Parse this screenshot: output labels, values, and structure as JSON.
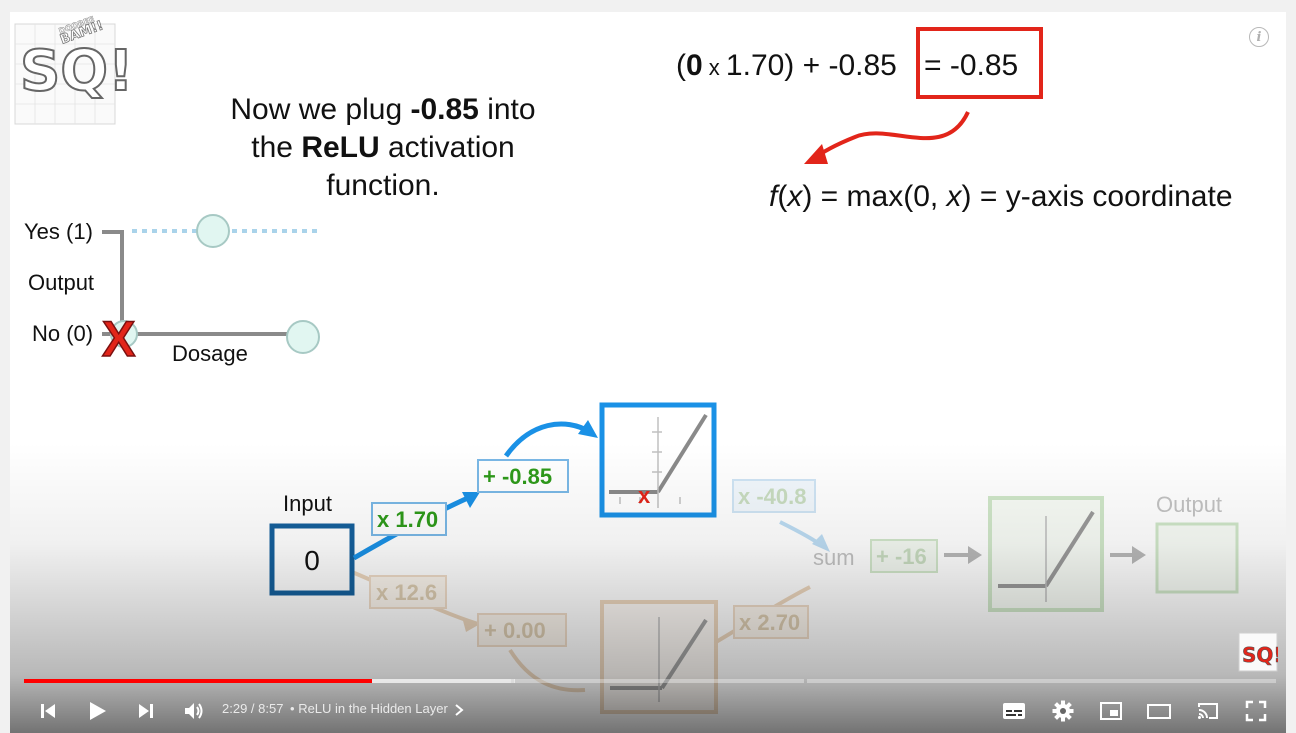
{
  "slide": {
    "headline": {
      "line1_pre": "Now we plug ",
      "line1_bold": "-0.85",
      "line1_post": " into",
      "line2_pre": "the ",
      "line2_bold": "ReLU",
      "line2_post": " activation",
      "line3": "function."
    },
    "equation": {
      "open": "(",
      "zero": "0",
      "times": " x ",
      "weight": "1.70) + -0.85",
      "result": "= -0.85"
    },
    "relu_formula": {
      "f": "f",
      "open1": "(",
      "x1": "x",
      "mid": ") = max(0, ",
      "x2": "x",
      "end": ") = y-axis coordinate"
    },
    "graph": {
      "yes_label": "Yes (1)",
      "output_label": "Output",
      "no_label": "No (0)",
      "dosage_label": "Dosage",
      "x_mark": "X"
    },
    "network": {
      "input_label": "Input",
      "input_value": "0",
      "w1_top": "x 1.70",
      "b1_top": "+ -0.85",
      "w2_top": "x -40.8",
      "w1_bottom": "x 12.6",
      "b1_bottom": "+ 0.00",
      "w2_bottom": "x 2.70",
      "sum_label": "sum",
      "final_bias": "+ -16",
      "output_label": "Output",
      "relu_x_mark": "x"
    },
    "logo_text": "SQ!",
    "logo_small": "BAM!!",
    "logo_tiny": "DOOBEE"
  },
  "player": {
    "time_current": "2:29",
    "time_separator": " / ",
    "time_total": "8:57",
    "chapter_bullet": "•",
    "chapter_title": "ReLU in the Hidden Layer",
    "progress_played": 0.278,
    "progress_buffered": 0.392,
    "info_label": "i",
    "colors": {
      "played": "#ff0000",
      "blue_box": "#1a91e6",
      "dark_blue": "#15609c",
      "green": "#2e9a1a",
      "red": "#e2251a",
      "orange_faded": "#e9c8a3",
      "green_faded": "#c9e6c0"
    }
  }
}
